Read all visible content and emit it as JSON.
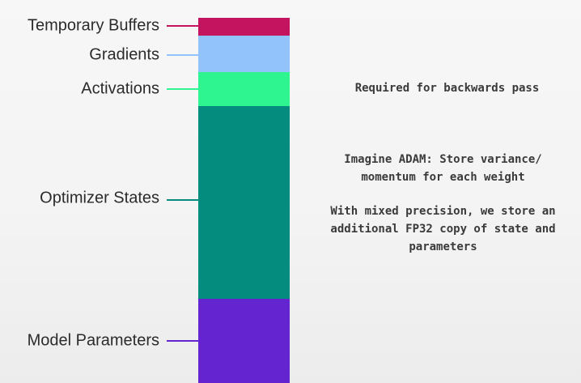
{
  "layers": [
    {
      "key": "temporary_buffers",
      "label": "Temporary Buffers",
      "color": "#c4145f"
    },
    {
      "key": "gradients",
      "label": "Gradients",
      "color": "#92c3fa"
    },
    {
      "key": "activations",
      "label": "Activations",
      "color": "#2ef58f"
    },
    {
      "key": "optimizer_states",
      "label": "Optimizer States",
      "color": "#048c7e"
    },
    {
      "key": "model_parameters",
      "label": "Model Parameters",
      "color": "#6425d1"
    }
  ],
  "annotations": {
    "activations_note": "Required for backwards pass",
    "optimizer_note_1": "Imagine ADAM: Store variance/\nmomentum for each weight",
    "optimizer_note_2": "With mixed precision, we store an\nadditional FP32 copy of state and\nparameters"
  }
}
